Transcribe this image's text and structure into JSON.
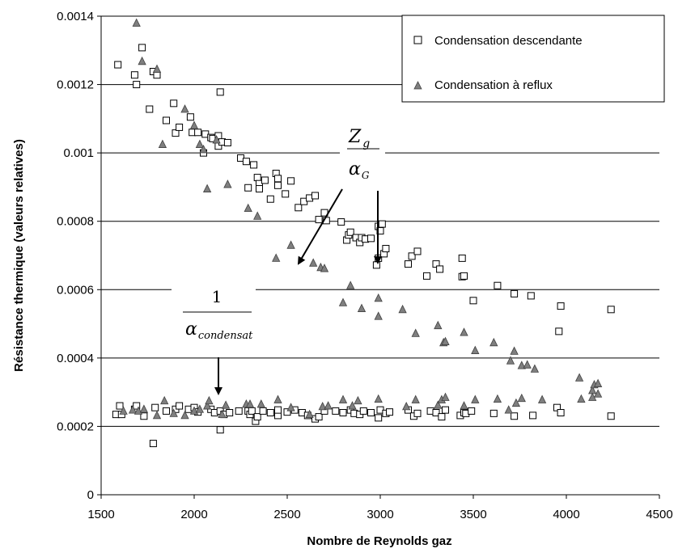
{
  "chart_data": {
    "type": "scatter",
    "xlabel": "Nombre de Reynolds gaz",
    "ylabel": "Résistance thermique (valeurs relatives)",
    "xlim": [
      1500,
      4500
    ],
    "ylim": [
      0,
      0.0014
    ],
    "x_ticks": [
      "1500",
      "2000",
      "2500",
      "3000",
      "3500",
      "4000",
      "4500"
    ],
    "y_ticks": [
      "0",
      "0.0002",
      "0.0004",
      "0.0006",
      "0.0008",
      "0.001",
      "0.0012",
      "0.0014"
    ],
    "grid": "horizontal",
    "legend_position": "top-right",
    "annotations": {
      "zg_numerator": "Z",
      "zg_numerator_sub": "g",
      "zg_denominator": "α",
      "zg_denominator_sub": "G",
      "cond_numerator": "1",
      "cond_denominator": "α",
      "cond_denominator_sub": "condensat"
    },
    "series": [
      {
        "name": "Condensation descendante",
        "marker": "square-open",
        "color": "#000000",
        "points": [
          [
            1590,
            0.001258
          ],
          [
            1680,
            0.001228
          ],
          [
            1690,
            0.0012
          ],
          [
            1720,
            0.001308
          ],
          [
            1760,
            0.001128
          ],
          [
            1780,
            0.001238
          ],
          [
            1800,
            0.001228
          ],
          [
            1850,
            0.001095
          ],
          [
            1890,
            0.001145
          ],
          [
            1900,
            0.001058
          ],
          [
            1920,
            0.001075
          ],
          [
            1980,
            0.001105
          ],
          [
            1990,
            0.00106
          ],
          [
            2020,
            0.00106
          ],
          [
            2050,
            0.001
          ],
          [
            2060,
            0.001055
          ],
          [
            2090,
            0.001045
          ],
          [
            2100,
            0.001042
          ],
          [
            2130,
            0.00102
          ],
          [
            2130,
            0.00105
          ],
          [
            2140,
            0.001178
          ],
          [
            2150,
            0.001032
          ],
          [
            2180,
            0.00103
          ],
          [
            2250,
            0.000985
          ],
          [
            2280,
            0.000975
          ],
          [
            2290,
            0.000898
          ],
          [
            2320,
            0.000965
          ],
          [
            2340,
            0.000928
          ],
          [
            2350,
            0.00091
          ],
          [
            2350,
            0.000895
          ],
          [
            2380,
            0.00092
          ],
          [
            2410,
            0.000865
          ],
          [
            2440,
            0.00094
          ],
          [
            2450,
            0.000925
          ],
          [
            2450,
            0.000905
          ],
          [
            2490,
            0.00088
          ],
          [
            2520,
            0.000918
          ],
          [
            2560,
            0.00084
          ],
          [
            2590,
            0.000858
          ],
          [
            2620,
            0.000868
          ],
          [
            2650,
            0.000875
          ],
          [
            2670,
            0.000805
          ],
          [
            2700,
            0.000825
          ],
          [
            2710,
            0.000802
          ],
          [
            2790,
            0.000798
          ],
          [
            2820,
            0.000745
          ],
          [
            2830,
            0.00076
          ],
          [
            2840,
            0.000768
          ],
          [
            2870,
            0.000752
          ],
          [
            2890,
            0.000738
          ],
          [
            2900,
            0.000752
          ],
          [
            2920,
            0.000748
          ],
          [
            2950,
            0.00075
          ],
          [
            2980,
            0.000672
          ],
          [
            2990,
            0.000692
          ],
          [
            2990,
            0.000785
          ],
          [
            3000,
            0.000772
          ],
          [
            3010,
            0.000792
          ],
          [
            3020,
            0.000705
          ],
          [
            3030,
            0.00072
          ],
          [
            3150,
            0.000675
          ],
          [
            3170,
            0.000698
          ],
          [
            3200,
            0.000712
          ],
          [
            3250,
            0.00064
          ],
          [
            3300,
            0.000675
          ],
          [
            3320,
            0.00066
          ],
          [
            3440,
            0.000638
          ],
          [
            3440,
            0.000692
          ],
          [
            3450,
            0.00064
          ],
          [
            3500,
            0.000568
          ],
          [
            3630,
            0.000612
          ],
          [
            3720,
            0.000588
          ],
          [
            3810,
            0.000582
          ],
          [
            3960,
            0.000478
          ],
          [
            3970,
            0.000552
          ],
          [
            4240,
            0.000542
          ],
          [
            1580,
            0.000235
          ],
          [
            1600,
            0.00026
          ],
          [
            1610,
            0.000235
          ],
          [
            1680,
            0.00025
          ],
          [
            1690,
            0.00026
          ],
          [
            1730,
            0.00023
          ],
          [
            1780,
            0.00015
          ],
          [
            1790,
            0.000255
          ],
          [
            1850,
            0.000245
          ],
          [
            1900,
            0.00025
          ],
          [
            1920,
            0.00026
          ],
          [
            1970,
            0.00025
          ],
          [
            2000,
            0.000255
          ],
          [
            2020,
            0.000242
          ],
          [
            2090,
            0.00025
          ],
          [
            2110,
            0.00024
          ],
          [
            2140,
            0.000245
          ],
          [
            2140,
            0.00019
          ],
          [
            2160,
            0.000235
          ],
          [
            2190,
            0.00024
          ],
          [
            2240,
            0.000245
          ],
          [
            2290,
            0.000245
          ],
          [
            2300,
            0.000235
          ],
          [
            2310,
            0.000245
          ],
          [
            2330,
            0.000215
          ],
          [
            2340,
            0.000228
          ],
          [
            2370,
            0.000245
          ],
          [
            2410,
            0.00024
          ],
          [
            2450,
            0.000232
          ],
          [
            2450,
            0.000248
          ],
          [
            2500,
            0.000242
          ],
          [
            2540,
            0.000248
          ],
          [
            2580,
            0.00024
          ],
          [
            2610,
            0.000232
          ],
          [
            2650,
            0.000222
          ],
          [
            2670,
            0.000228
          ],
          [
            2700,
            0.000245
          ],
          [
            2760,
            0.000245
          ],
          [
            2800,
            0.00024
          ],
          [
            2840,
            0.000248
          ],
          [
            2860,
            0.000238
          ],
          [
            2890,
            0.000235
          ],
          [
            2910,
            0.000245
          ],
          [
            2950,
            0.00024
          ],
          [
            2990,
            0.000225
          ],
          [
            3000,
            0.000248
          ],
          [
            3030,
            0.000238
          ],
          [
            3050,
            0.000242
          ],
          [
            3150,
            0.000248
          ],
          [
            3180,
            0.00023
          ],
          [
            3200,
            0.000238
          ],
          [
            3270,
            0.000245
          ],
          [
            3300,
            0.00024
          ],
          [
            3330,
            0.000228
          ],
          [
            3350,
            0.000248
          ],
          [
            3430,
            0.000232
          ],
          [
            3450,
            0.00024
          ],
          [
            3460,
            0.000238
          ],
          [
            3490,
            0.000245
          ],
          [
            3610,
            0.000238
          ],
          [
            3720,
            0.00023
          ],
          [
            3820,
            0.000232
          ],
          [
            3950,
            0.000255
          ],
          [
            3970,
            0.00024
          ],
          [
            4240,
            0.00023
          ]
        ]
      },
      {
        "name": "Condensation à reflux",
        "marker": "triangle-filled",
        "color": "#7f7f7f",
        "points": [
          [
            1690,
            0.00138
          ],
          [
            1720,
            0.001268
          ],
          [
            1800,
            0.001245
          ],
          [
            1830,
            0.001025
          ],
          [
            1950,
            0.001128
          ],
          [
            2000,
            0.00108
          ],
          [
            2030,
            0.001025
          ],
          [
            2050,
            0.00101
          ],
          [
            2070,
            0.000895
          ],
          [
            2120,
            0.001038
          ],
          [
            2180,
            0.000908
          ],
          [
            2290,
            0.000838
          ],
          [
            2340,
            0.000815
          ],
          [
            2440,
            0.000692
          ],
          [
            2520,
            0.00073
          ],
          [
            2640,
            0.000678
          ],
          [
            2680,
            0.000665
          ],
          [
            2700,
            0.000662
          ],
          [
            2800,
            0.000562
          ],
          [
            2840,
            0.000612
          ],
          [
            2900,
            0.000545
          ],
          [
            2990,
            0.000575
          ],
          [
            2990,
            0.000522
          ],
          [
            3120,
            0.000542
          ],
          [
            3190,
            0.000472
          ],
          [
            3310,
            0.000495
          ],
          [
            3340,
            0.000445
          ],
          [
            3350,
            0.000448
          ],
          [
            3450,
            0.000475
          ],
          [
            3510,
            0.000422
          ],
          [
            3610,
            0.000445
          ],
          [
            3700,
            0.000392
          ],
          [
            3720,
            0.00042
          ],
          [
            3760,
            0.000378
          ],
          [
            3790,
            0.00038
          ],
          [
            3830,
            0.000368
          ],
          [
            4070,
            0.000342
          ],
          [
            4140,
            0.000305
          ],
          [
            4150,
            0.000322
          ],
          [
            4170,
            0.000325
          ],
          [
            4170,
            0.000295
          ],
          [
            1620,
            0.000245
          ],
          [
            1670,
            0.000248
          ],
          [
            1700,
            0.000245
          ],
          [
            1730,
            0.00025
          ],
          [
            1800,
            0.000232
          ],
          [
            1840,
            0.000275
          ],
          [
            1890,
            0.000238
          ],
          [
            1950,
            0.000232
          ],
          [
            2000,
            0.000245
          ],
          [
            2030,
            0.00025
          ],
          [
            2070,
            0.00026
          ],
          [
            2080,
            0.000275
          ],
          [
            2150,
            0.000235
          ],
          [
            2170,
            0.000262
          ],
          [
            2280,
            0.000265
          ],
          [
            2300,
            0.000265
          ],
          [
            2360,
            0.000265
          ],
          [
            2450,
            0.000278
          ],
          [
            2520,
            0.000255
          ],
          [
            2620,
            0.000235
          ],
          [
            2690,
            0.000258
          ],
          [
            2720,
            0.00026
          ],
          [
            2800,
            0.000278
          ],
          [
            2850,
            0.00026
          ],
          [
            2880,
            0.000275
          ],
          [
            2990,
            0.00028
          ],
          [
            3140,
            0.000258
          ],
          [
            3190,
            0.000278
          ],
          [
            3310,
            0.000262
          ],
          [
            3330,
            0.000278
          ],
          [
            3350,
            0.000285
          ],
          [
            3450,
            0.00026
          ],
          [
            3510,
            0.000278
          ],
          [
            3630,
            0.00028
          ],
          [
            3690,
            0.000248
          ],
          [
            3730,
            0.000268
          ],
          [
            3760,
            0.000282
          ],
          [
            3870,
            0.000278
          ],
          [
            4080,
            0.00028
          ],
          [
            4140,
            0.000285
          ]
        ]
      }
    ]
  }
}
